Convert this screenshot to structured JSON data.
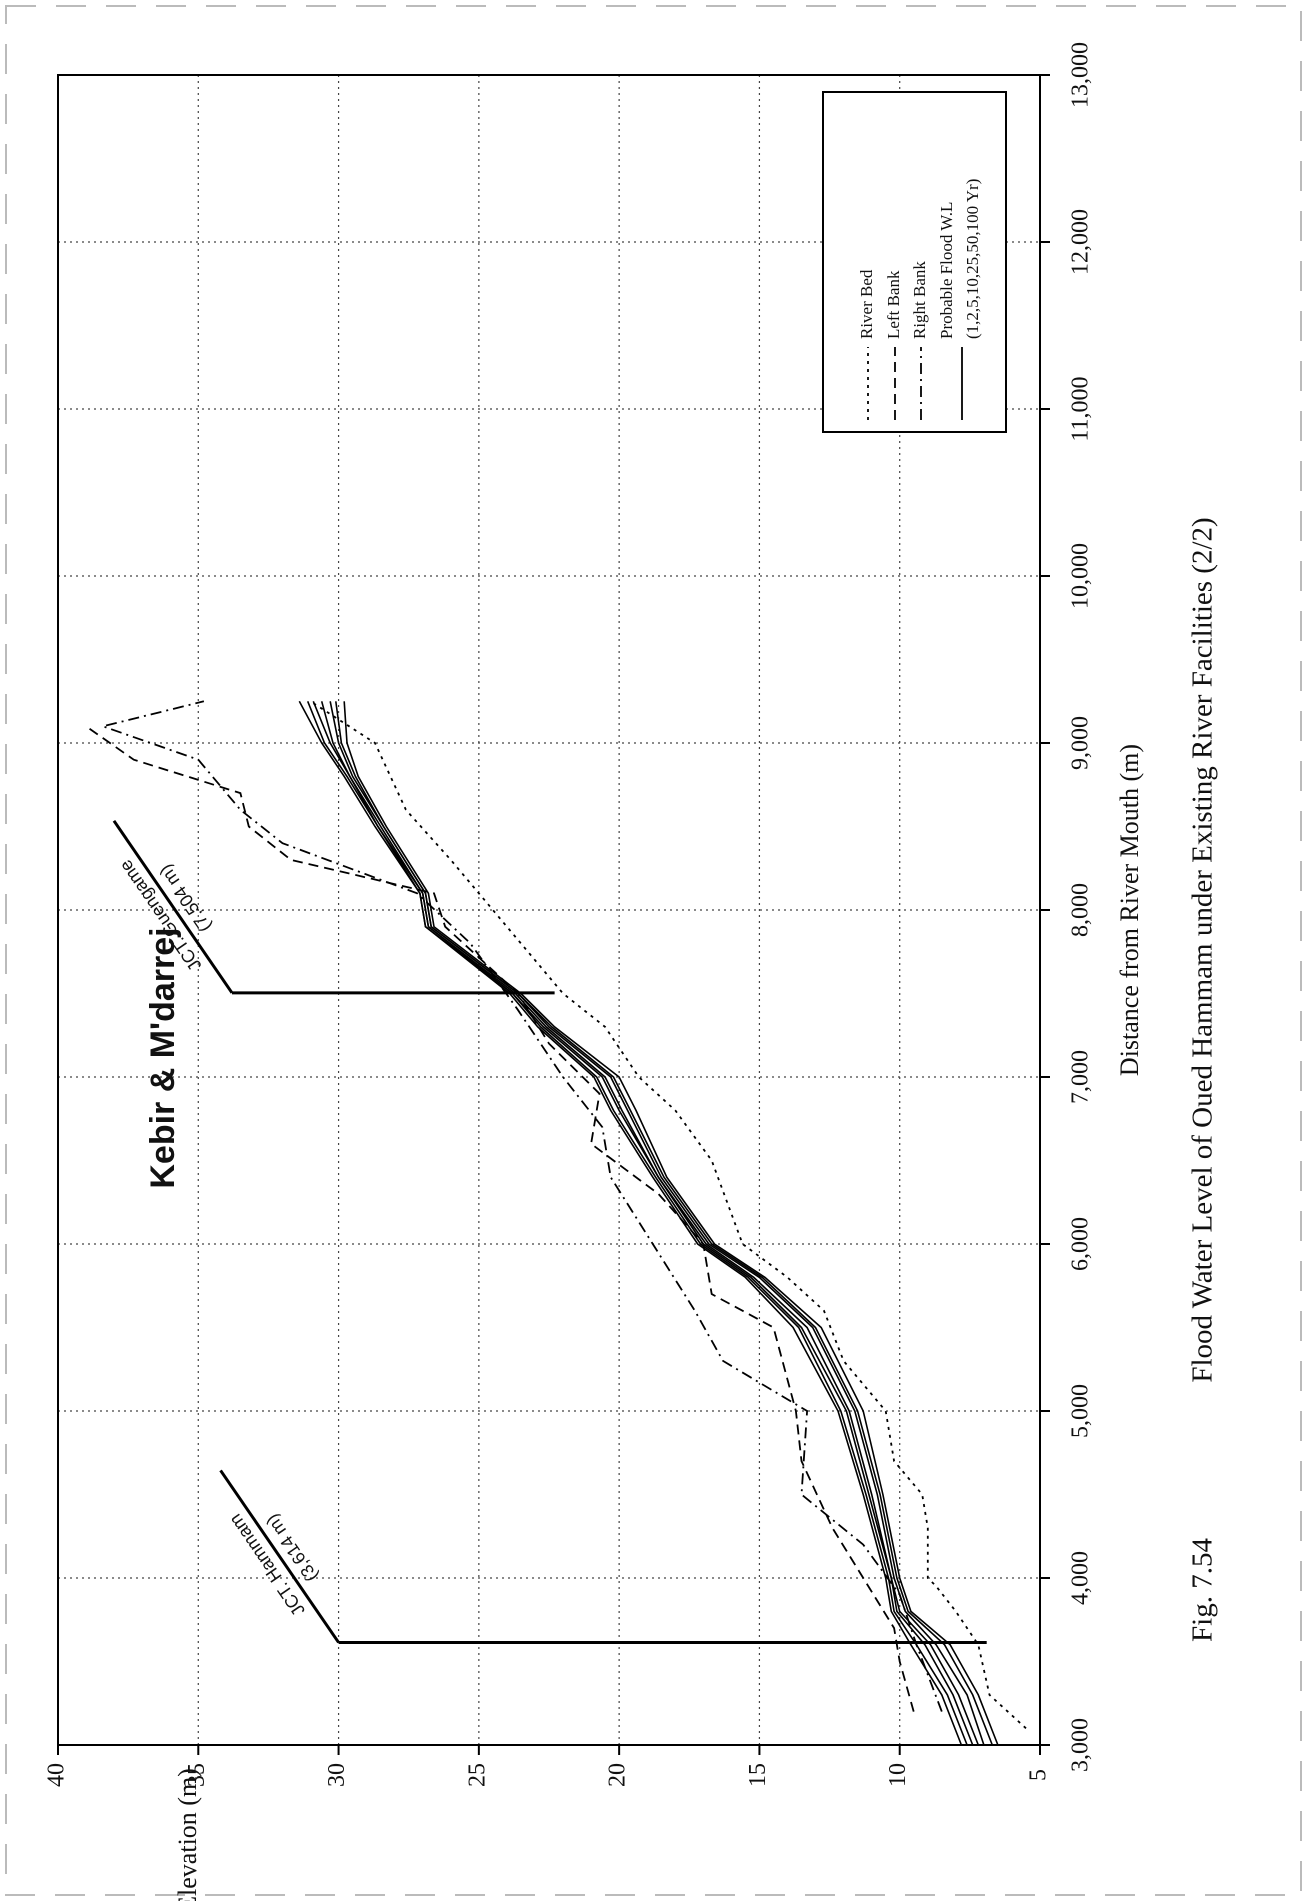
{
  "chart_data": {
    "type": "line",
    "title": "Flood Water Level of Oued Hammam under Existing River Facilities (2/2)",
    "figure_label": "Fig. 7.54",
    "xlabel": "Distance from River Mouth (m)",
    "ylabel": "Elevation (m)",
    "region_label": "Kebir & M'darrej",
    "xlim": [
      3000,
      13000
    ],
    "ylim": [
      5,
      40
    ],
    "xticks": [
      {
        "value": 3000,
        "label": "3,000"
      },
      {
        "value": 4000,
        "label": "4,000"
      },
      {
        "value": 5000,
        "label": "5,000"
      },
      {
        "value": 6000,
        "label": "6,000"
      },
      {
        "value": 7000,
        "label": "7,000"
      },
      {
        "value": 8000,
        "label": "8,000"
      },
      {
        "value": 9000,
        "label": "9,000"
      },
      {
        "value": 10000,
        "label": "10,000"
      },
      {
        "value": 11000,
        "label": "11,000"
      },
      {
        "value": 12000,
        "label": "12,000"
      },
      {
        "value": 13000,
        "label": "13,000"
      }
    ],
    "yticks": [
      5,
      10,
      15,
      20,
      25,
      30,
      35,
      40
    ],
    "grid": true,
    "legend": "upper-right",
    "x": [
      3000,
      3300,
      3600,
      3800,
      4000,
      4500,
      5000,
      5500,
      5800,
      6000,
      6400,
      6800,
      7000,
      7300,
      7500,
      7900,
      8100,
      8500,
      8800,
      9000,
      9250
    ],
    "series": [
      {
        "name": "River Bed",
        "color": "#000000",
        "style": "dotted",
        "x": [
          3100,
          3300,
          3600,
          3800,
          3950,
          4000,
          4300,
          4500,
          4700,
          5000,
          5300,
          5600,
          5800,
          6000,
          6500,
          6800,
          7000,
          7300,
          7500,
          7800,
          8000,
          8300,
          8600,
          9000,
          9250
        ],
        "values": [
          5.5,
          6.8,
          7.2,
          8.0,
          8.7,
          9.0,
          9.0,
          9.2,
          10.2,
          10.5,
          12.0,
          12.7,
          14.0,
          15.6,
          16.7,
          18.0,
          19.3,
          20.5,
          22.0,
          23.5,
          24.5,
          26.0,
          27.6,
          28.7,
          31.0
        ]
      },
      {
        "name": "Left Bank",
        "color": "#000000",
        "style": "dashed",
        "x": [
          3200,
          3500,
          3700,
          4300,
          4700,
          5000,
          5500,
          5700,
          6000,
          6300,
          6600,
          6900,
          7200,
          7500,
          7900,
          8100,
          8300,
          8500,
          8700,
          8900,
          9100
        ],
        "values": [
          9.5,
          10.0,
          10.2,
          12.4,
          13.5,
          13.7,
          14.5,
          16.7,
          17.0,
          18.6,
          21.0,
          20.7,
          22.5,
          23.6,
          26.2,
          26.6,
          31.7,
          33.2,
          33.5,
          37.3,
          39.0
        ]
      },
      {
        "name": "Right Bank",
        "color": "#000000",
        "style": "dashdot",
        "x": [
          3200,
          3600,
          3900,
          4200,
          4500,
          5000,
          5300,
          5600,
          6000,
          6400,
          6700,
          7000,
          7400,
          7800,
          8100,
          8400,
          8600,
          8900,
          9100,
          9250
        ],
        "values": [
          8.5,
          9.4,
          10.0,
          11.3,
          13.5,
          13.3,
          16.3,
          17.3,
          18.8,
          20.3,
          20.6,
          22.0,
          23.6,
          25.3,
          27.2,
          32.0,
          33.5,
          35.0,
          38.4,
          34.8
        ]
      },
      {
        "name": "Probable Flood W.L",
        "subtitle": "(1,2,5,10,25,50,100 Yr)",
        "color": "#000000",
        "style": "solid",
        "lines": [
          [
            6.5,
            7.2,
            8.2,
            9.6,
            10.0,
            10.6,
            11.3,
            12.8,
            14.8,
            16.6,
            18.3,
            19.4,
            20.0,
            22.3,
            23.5,
            26.6,
            26.8,
            28.3,
            29.3,
            29.7,
            29.8
          ],
          [
            6.7,
            7.4,
            8.4,
            9.7,
            10.1,
            10.7,
            11.5,
            13.0,
            14.9,
            16.7,
            18.4,
            19.6,
            20.2,
            22.4,
            23.6,
            26.7,
            26.9,
            28.4,
            29.4,
            29.9,
            30.1
          ],
          [
            7.0,
            7.6,
            8.7,
            9.8,
            10.2,
            10.8,
            11.6,
            13.1,
            15.0,
            16.8,
            18.5,
            19.7,
            20.3,
            22.5,
            23.6,
            26.7,
            26.9,
            28.4,
            29.5,
            30.0,
            30.3
          ],
          [
            7.2,
            7.9,
            8.9,
            10.0,
            10.3,
            11.0,
            11.8,
            13.3,
            15.2,
            16.9,
            18.6,
            19.9,
            20.5,
            22.6,
            23.7,
            26.8,
            27.0,
            28.5,
            29.6,
            30.2,
            30.6
          ],
          [
            7.4,
            8.1,
            9.1,
            10.1,
            10.3,
            11.1,
            11.9,
            13.5,
            15.3,
            17.0,
            18.6,
            20.0,
            20.6,
            22.7,
            23.8,
            26.8,
            27.0,
            28.6,
            29.6,
            30.3,
            30.9
          ],
          [
            7.6,
            8.3,
            9.4,
            10.2,
            10.4,
            11.2,
            12.1,
            13.6,
            15.4,
            17.1,
            18.7,
            20.2,
            20.8,
            22.8,
            23.8,
            26.9,
            27.1,
            28.6,
            29.7,
            30.5,
            31.1
          ],
          [
            7.8,
            8.5,
            9.6,
            10.3,
            10.5,
            11.3,
            12.2,
            13.8,
            15.5,
            17.2,
            18.8,
            20.3,
            20.9,
            22.9,
            23.9,
            26.9,
            27.1,
            28.7,
            29.8,
            30.6,
            31.4
          ]
        ]
      }
    ],
    "annotations": [
      {
        "text": "JCT. Hammam",
        "sub": "(3,614 m)",
        "x": 3614,
        "y": [
          6.9,
          30
        ]
      },
      {
        "text": "JCT. Guengame",
        "sub": "(7,504 m)",
        "x": 7504,
        "y": [
          22.3,
          33.8
        ]
      }
    ]
  }
}
